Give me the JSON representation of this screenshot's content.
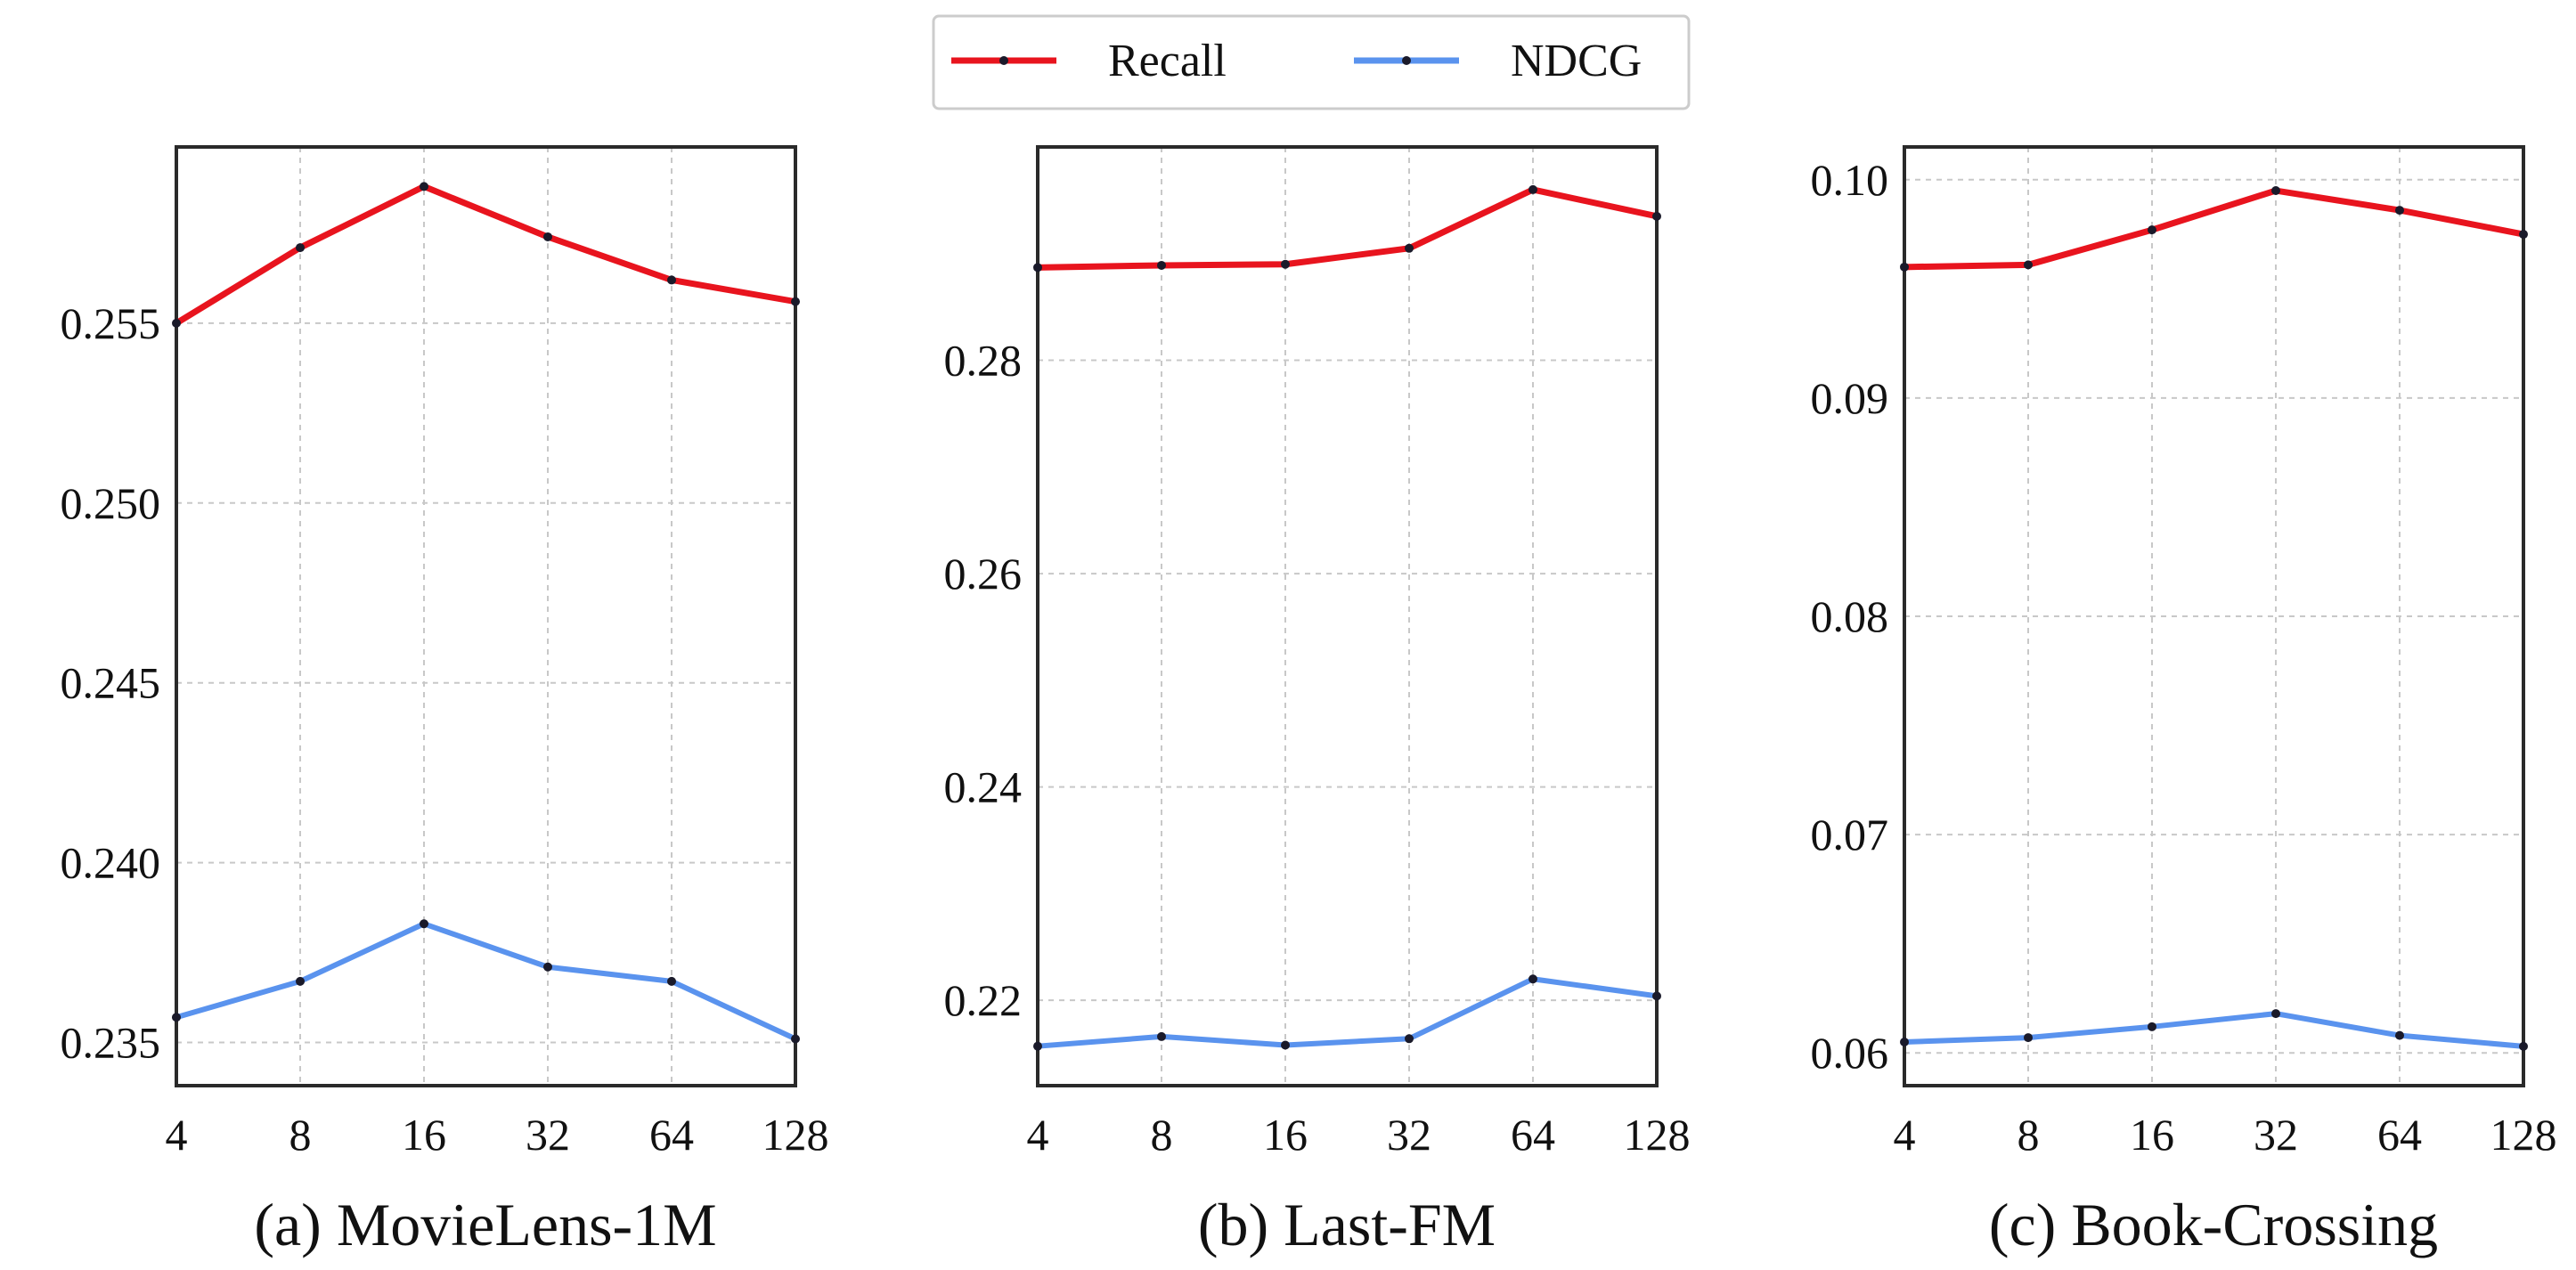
{
  "legend": {
    "items": [
      {
        "name": "Recall",
        "color": "#e8141e"
      },
      {
        "name": "NDCG",
        "color": "#5a93ee"
      }
    ]
  },
  "chart_data": [
    {
      "type": "line",
      "title": "(a) MovieLens-1M",
      "categories": [
        "4",
        "8",
        "16",
        "32",
        "64",
        "128"
      ],
      "ylim": [
        0.2338,
        0.2599
      ],
      "yticks": [
        0.235,
        0.24,
        0.245,
        0.25,
        0.255
      ],
      "ytick_labels": [
        "0.235",
        "0.240",
        "0.245",
        "0.250",
        "0.255"
      ],
      "grid": true,
      "series": [
        {
          "name": "Recall",
          "color": "#e8141e",
          "values": [
            0.255,
            0.2571,
            0.2588,
            0.2574,
            0.2562,
            0.2556
          ]
        },
        {
          "name": "NDCG",
          "color": "#5a93ee",
          "values": [
            0.2357,
            0.2367,
            0.2383,
            0.2371,
            0.2367,
            0.2351
          ]
        }
      ]
    },
    {
      "type": "line",
      "title": "(b) Last-FM",
      "categories": [
        "4",
        "8",
        "16",
        "32",
        "64",
        "128"
      ],
      "ylim": [
        0.212,
        0.3
      ],
      "yticks": [
        0.22,
        0.24,
        0.26,
        0.28
      ],
      "ytick_labels": [
        "0.22",
        "0.24",
        "0.26",
        "0.28"
      ],
      "grid": true,
      "series": [
        {
          "name": "Recall",
          "color": "#e8141e",
          "values": [
            0.2887,
            0.2889,
            0.289,
            0.2905,
            0.296,
            0.2935
          ]
        },
        {
          "name": "NDCG",
          "color": "#5a93ee",
          "values": [
            0.2157,
            0.2166,
            0.2158,
            0.2164,
            0.222,
            0.2204
          ]
        }
      ]
    },
    {
      "type": "line",
      "title": "(c) Book-Crossing",
      "categories": [
        "4",
        "8",
        "16",
        "32",
        "64",
        "128"
      ],
      "ylim": [
        0.0585,
        0.1015
      ],
      "yticks": [
        0.06,
        0.07,
        0.08,
        0.09,
        0.1
      ],
      "ytick_labels": [
        "0.06",
        "0.07",
        "0.08",
        "0.09",
        "0.10"
      ],
      "grid": true,
      "series": [
        {
          "name": "Recall",
          "color": "#e8141e",
          "values": [
            0.096,
            0.0961,
            0.0977,
            0.0995,
            0.0986,
            0.0975
          ]
        },
        {
          "name": "NDCG",
          "color": "#5a93ee",
          "values": [
            0.0605,
            0.0607,
            0.0612,
            0.0618,
            0.0608,
            0.0603
          ]
        }
      ]
    }
  ]
}
